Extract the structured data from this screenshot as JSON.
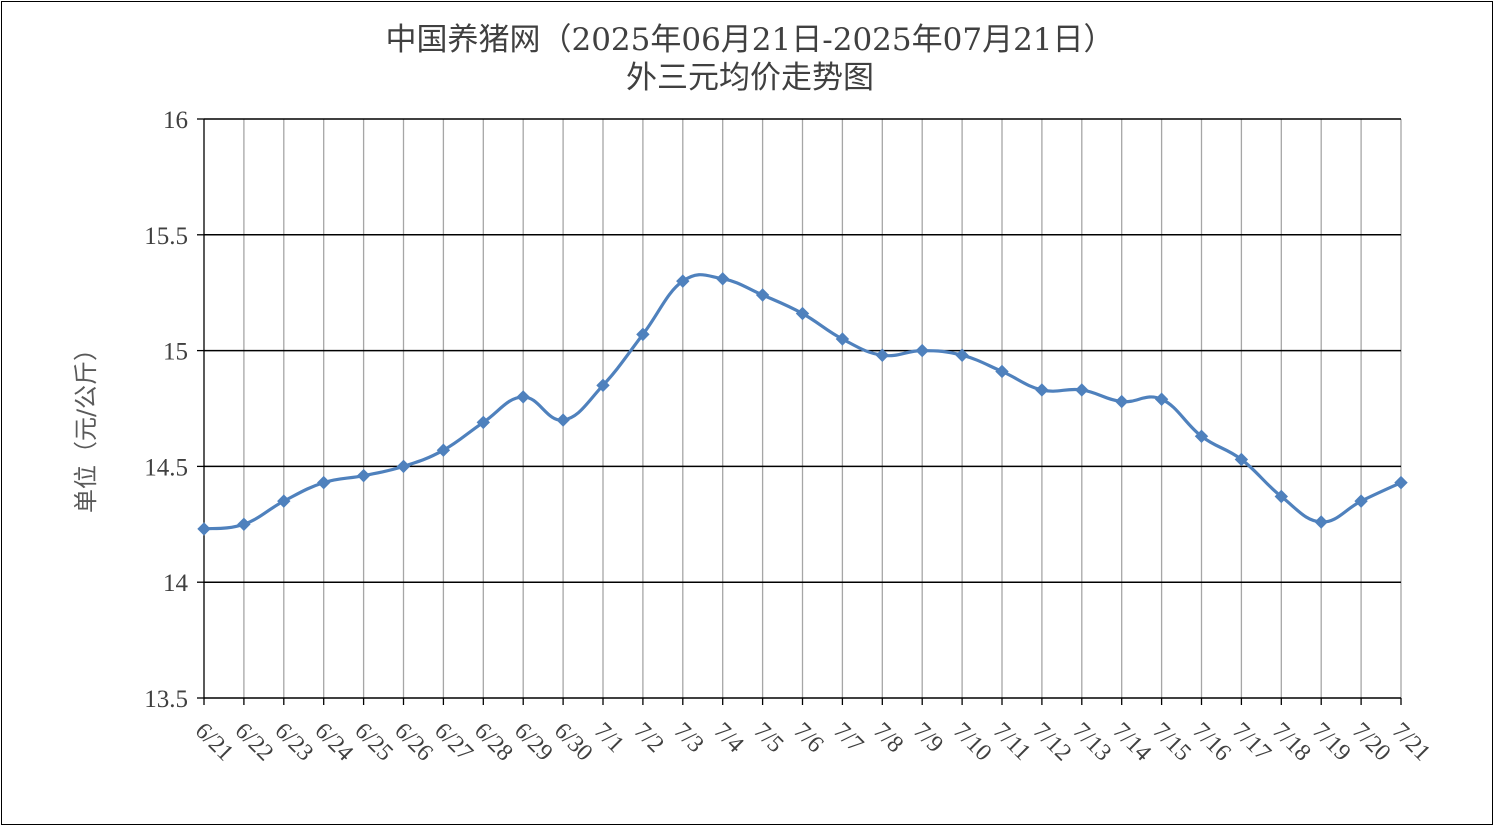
{
  "chart_data": {
    "type": "line",
    "title": "中国养猪网（2025年06月21日-2025年07月21日）",
    "subtitle": "外三元均价走势图",
    "xlabel": "",
    "ylabel": "单位（元/公斤）",
    "ylim": [
      13.5,
      16
    ],
    "yticks": [
      "16",
      "15.5",
      "15",
      "14.5",
      "14",
      "13.5"
    ],
    "grid": "horizontal and vertical",
    "legend": "none",
    "line_color": "#4F81BD",
    "categories": [
      "6/21",
      "6/22",
      "6/23",
      "6/24",
      "6/25",
      "6/26",
      "6/27",
      "6/28",
      "6/29",
      "6/30",
      "7/1",
      "7/2",
      "7/3",
      "7/4",
      "7/5",
      "7/6",
      "7/7",
      "7/8",
      "7/9",
      "7/10",
      "7/11",
      "7/12",
      "7/13",
      "7/14",
      "7/15",
      "7/16",
      "7/17",
      "7/18",
      "7/19",
      "7/20",
      "7/21"
    ],
    "series": [
      {
        "values": [
          14.23,
          14.25,
          14.35,
          14.43,
          14.46,
          14.5,
          14.57,
          14.69,
          14.8,
          14.7,
          14.85,
          15.07,
          15.3,
          15.31,
          15.24,
          15.16,
          15.05,
          14.98,
          15.0,
          14.98,
          14.91,
          14.83,
          14.83,
          14.78,
          14.79,
          14.63,
          14.53,
          14.37,
          14.26,
          14.35,
          14.43
        ]
      }
    ]
  }
}
